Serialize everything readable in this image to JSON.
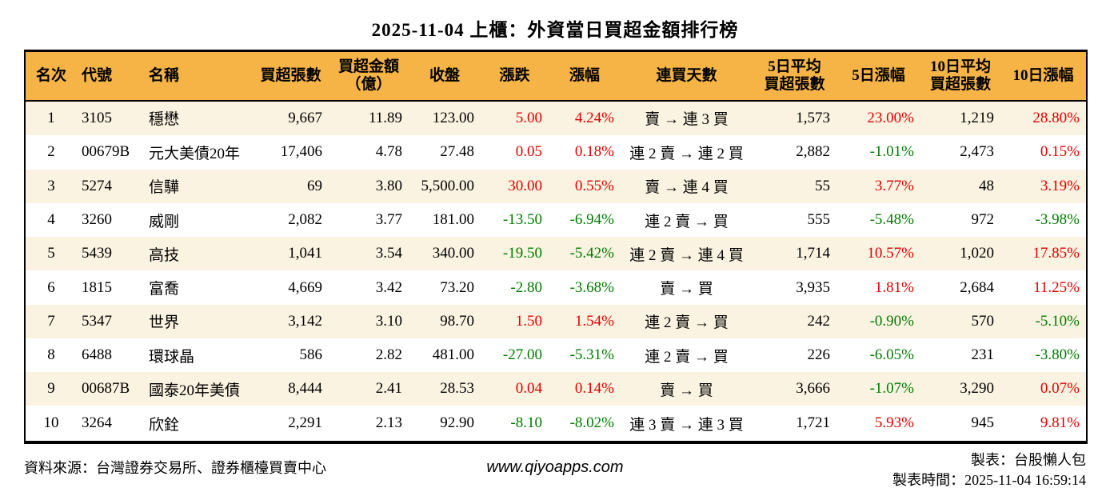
{
  "chart_data": {
    "type": "table",
    "title": "2025-11-04 上櫃：外資當日買超金額排行榜",
    "columns": [
      "名次",
      "代號",
      "名稱",
      "買超張數",
      "買超金額\n（億）",
      "收盤",
      "漲跌",
      "漲幅",
      "連買天數",
      "5日平均\n買超張數",
      "5日漲幅",
      "10日平均\n買超張數",
      "10日漲幅"
    ],
    "rows": [
      {
        "rank": "1",
        "code": "3105",
        "name": "穩懋",
        "volume": "9,667",
        "amount": "11.89",
        "close": "123.00",
        "change": "5.00",
        "change_pct": "4.24%",
        "streak": "賣 → 連 3 買",
        "avg5_volume": "1,573",
        "pct5": "23.00%",
        "avg10_volume": "1,219",
        "pct10": "28.80%"
      },
      {
        "rank": "2",
        "code": "00679B",
        "name": "元大美債20年",
        "volume": "17,406",
        "amount": "4.78",
        "close": "27.48",
        "change": "0.05",
        "change_pct": "0.18%",
        "streak": "連 2 賣 → 連 2 買",
        "avg5_volume": "2,882",
        "pct5": "-1.01%",
        "avg10_volume": "2,473",
        "pct10": "0.15%"
      },
      {
        "rank": "3",
        "code": "5274",
        "name": "信驊",
        "volume": "69",
        "amount": "3.80",
        "close": "5,500.00",
        "change": "30.00",
        "change_pct": "0.55%",
        "streak": "賣 → 連 4 買",
        "avg5_volume": "55",
        "pct5": "3.77%",
        "avg10_volume": "48",
        "pct10": "3.19%"
      },
      {
        "rank": "4",
        "code": "3260",
        "name": "威剛",
        "volume": "2,082",
        "amount": "3.77",
        "close": "181.00",
        "change": "-13.50",
        "change_pct": "-6.94%",
        "streak": "連 2 賣 → 買",
        "avg5_volume": "555",
        "pct5": "-5.48%",
        "avg10_volume": "972",
        "pct10": "-3.98%"
      },
      {
        "rank": "5",
        "code": "5439",
        "name": "高技",
        "volume": "1,041",
        "amount": "3.54",
        "close": "340.00",
        "change": "-19.50",
        "change_pct": "-5.42%",
        "streak": "連 2 賣 → 連 4 買",
        "avg5_volume": "1,714",
        "pct5": "10.57%",
        "avg10_volume": "1,020",
        "pct10": "17.85%"
      },
      {
        "rank": "6",
        "code": "1815",
        "name": "富喬",
        "volume": "4,669",
        "amount": "3.42",
        "close": "73.20",
        "change": "-2.80",
        "change_pct": "-3.68%",
        "streak": "賣 → 買",
        "avg5_volume": "3,935",
        "pct5": "1.81%",
        "avg10_volume": "2,684",
        "pct10": "11.25%"
      },
      {
        "rank": "7",
        "code": "5347",
        "name": "世界",
        "volume": "3,142",
        "amount": "3.10",
        "close": "98.70",
        "change": "1.50",
        "change_pct": "1.54%",
        "streak": "連 2 賣 → 買",
        "avg5_volume": "242",
        "pct5": "-0.90%",
        "avg10_volume": "570",
        "pct10": "-5.10%"
      },
      {
        "rank": "8",
        "code": "6488",
        "name": "環球晶",
        "volume": "586",
        "amount": "2.82",
        "close": "481.00",
        "change": "-27.00",
        "change_pct": "-5.31%",
        "streak": "連 2 賣 → 買",
        "avg5_volume": "226",
        "pct5": "-6.05%",
        "avg10_volume": "231",
        "pct10": "-3.80%"
      },
      {
        "rank": "9",
        "code": "00687B",
        "name": "國泰20年美債",
        "volume": "8,444",
        "amount": "2.41",
        "close": "28.53",
        "change": "0.04",
        "change_pct": "0.14%",
        "streak": "賣 → 買",
        "avg5_volume": "3,666",
        "pct5": "-1.07%",
        "avg10_volume": "3,290",
        "pct10": "0.07%"
      },
      {
        "rank": "10",
        "code": "3264",
        "name": "欣銓",
        "volume": "2,291",
        "amount": "2.13",
        "close": "92.90",
        "change": "-8.10",
        "change_pct": "-8.02%",
        "streak": "連 3 賣 → 連 3 買",
        "avg5_volume": "1,721",
        "pct5": "5.93%",
        "avg10_volume": "945",
        "pct10": "9.81%"
      }
    ],
    "legend": "positive values shown in red, negative values shown in green"
  },
  "footer": {
    "source": "資料來源：台灣證券交易所、證券櫃檯買賣中心",
    "website": "www.qiyoapps.com",
    "maker": "製表：台股懶人包",
    "made_time": "製表時間：2025-11-04 16:59:14"
  },
  "colors": {
    "positive": "#de0000",
    "negative": "#007b00",
    "header_bg": "#f5b445",
    "row_stripe_bg": "#fbf3e1",
    "border": "#000000"
  }
}
